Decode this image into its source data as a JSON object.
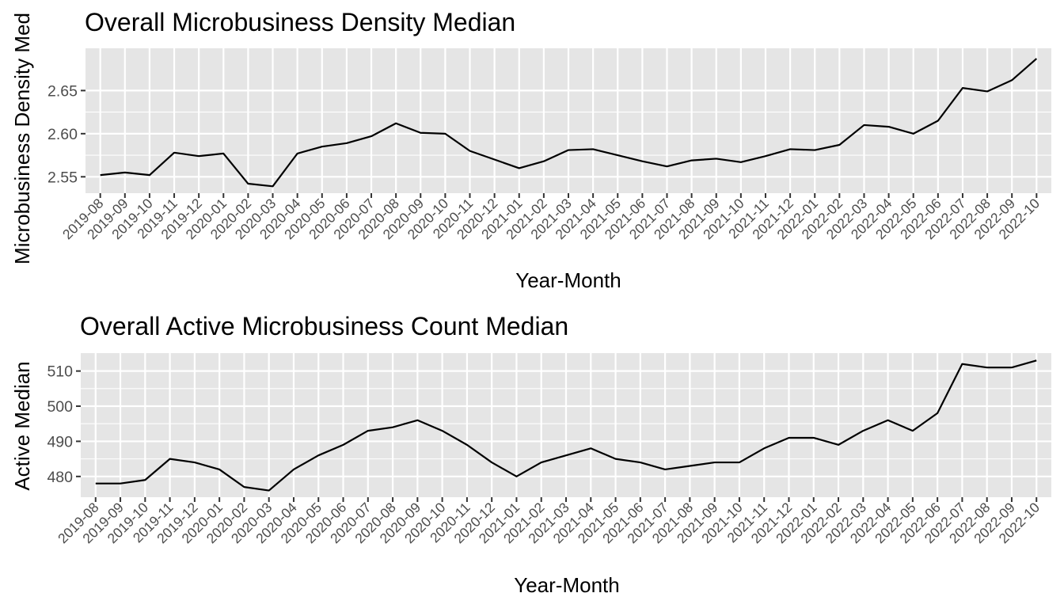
{
  "chart_data": [
    {
      "type": "line",
      "title": "Overall Microbusiness Density Median",
      "xlabel": "Year-Month",
      "ylabel": "Microbusiness Density Median",
      "ylabel_visible": "Microbusiness Density Med",
      "grid": true,
      "line_color": "#000000",
      "panel_color": "#e5e5e5",
      "ylim": [
        2.531,
        2.699
      ],
      "yticks": [
        2.55,
        2.6,
        2.65
      ],
      "ytick_labels": [
        "2.55",
        "2.60",
        "2.65"
      ],
      "categories": [
        "2019-08",
        "2019-09",
        "2019-10",
        "2019-11",
        "2019-12",
        "2020-01",
        "2020-02",
        "2020-03",
        "2020-04",
        "2020-05",
        "2020-06",
        "2020-07",
        "2020-08",
        "2020-09",
        "2020-10",
        "2020-11",
        "2020-12",
        "2021-01",
        "2021-02",
        "2021-03",
        "2021-04",
        "2021-05",
        "2021-06",
        "2021-07",
        "2021-08",
        "2021-09",
        "2021-10",
        "2021-11",
        "2021-12",
        "2022-01",
        "2022-02",
        "2022-03",
        "2022-04",
        "2022-05",
        "2022-06",
        "2022-07",
        "2022-08",
        "2022-09",
        "2022-10"
      ],
      "values": [
        2.552,
        2.555,
        2.552,
        2.578,
        2.574,
        2.577,
        2.542,
        2.539,
        2.577,
        2.585,
        2.589,
        2.597,
        2.612,
        2.601,
        2.6,
        2.58,
        2.57,
        2.56,
        2.568,
        2.581,
        2.582,
        2.575,
        2.568,
        2.562,
        2.569,
        2.571,
        2.567,
        2.574,
        2.582,
        2.581,
        2.587,
        2.61,
        2.608,
        2.6,
        2.615,
        2.653,
        2.649,
        2.662,
        2.687
      ]
    },
    {
      "type": "line",
      "title": "Overall Active Microbusiness Count Median",
      "xlabel": "Year-Month",
      "ylabel": "Active Median",
      "grid": true,
      "line_color": "#000000",
      "panel_color": "#e5e5e5",
      "ylim": [
        474.1,
        515.1
      ],
      "yticks": [
        480,
        490,
        500,
        510
      ],
      "ytick_labels": [
        "480",
        "490",
        "500",
        "510"
      ],
      "categories": [
        "2019-08",
        "2019-09",
        "2019-10",
        "2019-11",
        "2019-12",
        "2020-01",
        "2020-02",
        "2020-03",
        "2020-04",
        "2020-05",
        "2020-06",
        "2020-07",
        "2020-08",
        "2020-09",
        "2020-10",
        "2020-11",
        "2020-12",
        "2021-01",
        "2021-02",
        "2021-03",
        "2021-04",
        "2021-05",
        "2021-06",
        "2021-07",
        "2021-08",
        "2021-09",
        "2021-10",
        "2021-11",
        "2021-12",
        "2022-01",
        "2022-02",
        "2022-03",
        "2022-04",
        "2022-05",
        "2022-06",
        "2022-07",
        "2022-08",
        "2022-09",
        "2022-10"
      ],
      "values": [
        478,
        478,
        479,
        485,
        484,
        482,
        477,
        476,
        482,
        486,
        489,
        493,
        494,
        496,
        493,
        489,
        484,
        480,
        484,
        486,
        488,
        485,
        484,
        482,
        483,
        484,
        484,
        488,
        491,
        491,
        489,
        493,
        496,
        493,
        498,
        512,
        511,
        511,
        513
      ]
    }
  ]
}
